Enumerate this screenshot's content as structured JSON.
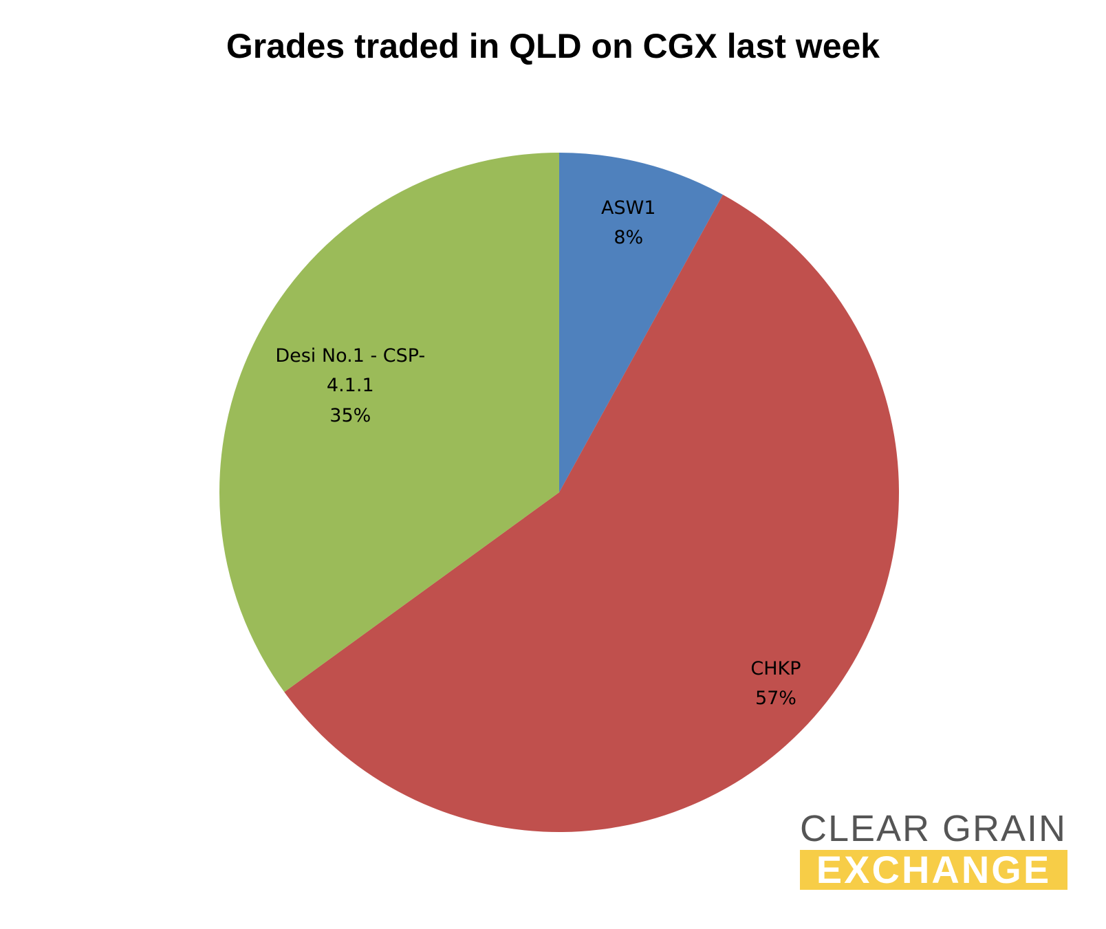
{
  "chart_data": {
    "type": "pie",
    "title": "Grades traded in QLD on CGX last week",
    "categories": [
      "ASW1",
      "CHKP",
      "Desi No.1 - CSP-4.1.1"
    ],
    "values": [
      8,
      57,
      35
    ],
    "value_labels": [
      "8%",
      "57%",
      "35%"
    ],
    "colors": [
      "#4f81bd",
      "#c0504d",
      "#9bbb59"
    ]
  },
  "logo": {
    "line1": "CLEAR GRAIN",
    "line2": "EXCHANGE"
  }
}
